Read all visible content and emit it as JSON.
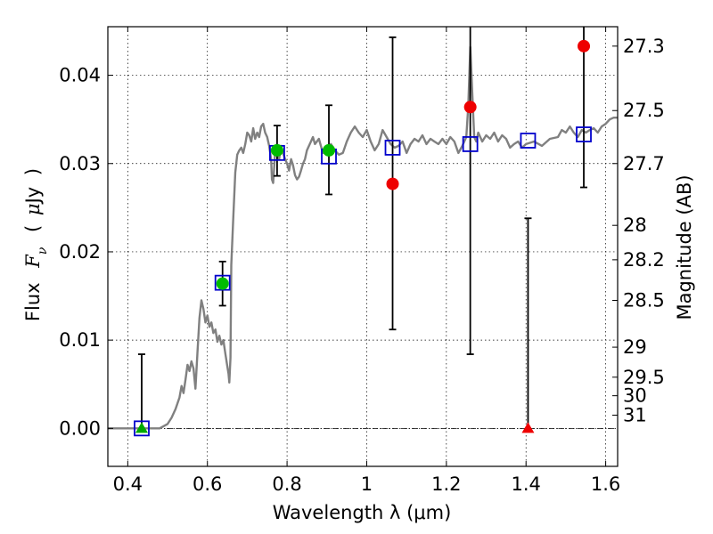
{
  "chart_data": {
    "type": "scatter",
    "xlabel": "Wavelength  λ (μm)",
    "ylabel": "Flux  F_ν  ( μJy )",
    "ylabel_parts": [
      "Flux",
      "F",
      "ν",
      "(",
      "μ",
      "Jy",
      ")"
    ],
    "y2label": "Magnitude (AB)",
    "xlim": [
      0.35,
      1.63
    ],
    "ylim": [
      -0.0043,
      0.0455
    ],
    "grid": true,
    "x_ticks": [
      {
        "value": 0.4,
        "label": "0.4"
      },
      {
        "value": 0.6,
        "label": "0.6"
      },
      {
        "value": 0.8,
        "label": "0.8"
      },
      {
        "value": 1.0,
        "label": "1"
      },
      {
        "value": 1.2,
        "label": "1.2"
      },
      {
        "value": 1.4,
        "label": "1.4"
      },
      {
        "value": 1.6,
        "label": "1.6"
      }
    ],
    "y_ticks": [
      {
        "value": 0.0,
        "label": "0.00"
      },
      {
        "value": 0.01,
        "label": "0.01"
      },
      {
        "value": 0.02,
        "label": "0.02"
      },
      {
        "value": 0.03,
        "label": "0.03"
      },
      {
        "value": 0.04,
        "label": "0.04"
      }
    ],
    "y2_ticks": [
      {
        "flux": 0.0433,
        "label": "27.3"
      },
      {
        "flux": 0.036,
        "label": "27.5"
      },
      {
        "flux": 0.03,
        "label": "27.7"
      },
      {
        "flux": 0.023,
        "label": "28"
      },
      {
        "flux": 0.0191,
        "label": "28.2"
      },
      {
        "flux": 0.0145,
        "label": "28.5"
      },
      {
        "flux": 0.0092,
        "label": "29"
      },
      {
        "flux": 0.0058,
        "label": "29.5"
      },
      {
        "flux": 0.0037,
        "label": "30"
      },
      {
        "flux": 0.0015,
        "label": "31"
      }
    ],
    "zero_line": {
      "y": 0.0
    },
    "series": [
      {
        "style": "sed_model",
        "color": "#808080",
        "points": [
          [
            0.35,
            0
          ],
          [
            0.45,
            0
          ],
          [
            0.48,
            0
          ],
          [
            0.5,
            0.0005
          ],
          [
            0.51,
            0.0012
          ],
          [
            0.52,
            0.0022
          ],
          [
            0.53,
            0.0035
          ],
          [
            0.535,
            0.0048
          ],
          [
            0.54,
            0.004
          ],
          [
            0.545,
            0.0055
          ],
          [
            0.55,
            0.0072
          ],
          [
            0.555,
            0.0065
          ],
          [
            0.56,
            0.0076
          ],
          [
            0.565,
            0.0068
          ],
          [
            0.57,
            0.0045
          ],
          [
            0.575,
            0.0085
          ],
          [
            0.58,
            0.0125
          ],
          [
            0.585,
            0.0145
          ],
          [
            0.59,
            0.0135
          ],
          [
            0.595,
            0.012
          ],
          [
            0.6,
            0.0128
          ],
          [
            0.605,
            0.0115
          ],
          [
            0.61,
            0.012
          ],
          [
            0.615,
            0.0108
          ],
          [
            0.62,
            0.0112
          ],
          [
            0.625,
            0.0098
          ],
          [
            0.63,
            0.0105
          ],
          [
            0.635,
            0.0095
          ],
          [
            0.64,
            0.01
          ],
          [
            0.645,
            0.0085
          ],
          [
            0.65,
            0.007
          ],
          [
            0.653,
            0.0062
          ],
          [
            0.655,
            0.0052
          ],
          [
            0.658,
            0.008
          ],
          [
            0.66,
            0.0185
          ],
          [
            0.665,
            0.024
          ],
          [
            0.67,
            0.029
          ],
          [
            0.675,
            0.031
          ],
          [
            0.68,
            0.0315
          ],
          [
            0.685,
            0.0318
          ],
          [
            0.69,
            0.0312
          ],
          [
            0.695,
            0.0322
          ],
          [
            0.7,
            0.0335
          ],
          [
            0.705,
            0.0332
          ],
          [
            0.71,
            0.0325
          ],
          [
            0.715,
            0.034
          ],
          [
            0.72,
            0.0328
          ],
          [
            0.725,
            0.0335
          ],
          [
            0.73,
            0.033
          ],
          [
            0.735,
            0.0342
          ],
          [
            0.74,
            0.0345
          ],
          [
            0.745,
            0.0335
          ],
          [
            0.75,
            0.033
          ],
          [
            0.755,
            0.032
          ],
          [
            0.76,
            0.0305
          ],
          [
            0.762,
            0.0282
          ],
          [
            0.765,
            0.0278
          ],
          [
            0.768,
            0.0298
          ],
          [
            0.77,
            0.0315
          ],
          [
            0.775,
            0.031
          ],
          [
            0.78,
            0.0305
          ],
          [
            0.785,
            0.032
          ],
          [
            0.79,
            0.0312
          ],
          [
            0.795,
            0.0305
          ],
          [
            0.8,
            0.03
          ],
          [
            0.805,
            0.0292
          ],
          [
            0.81,
            0.0305
          ],
          [
            0.815,
            0.0298
          ],
          [
            0.82,
            0.0287
          ],
          [
            0.825,
            0.0282
          ],
          [
            0.83,
            0.0285
          ],
          [
            0.835,
            0.0292
          ],
          [
            0.84,
            0.03
          ],
          [
            0.845,
            0.0305
          ],
          [
            0.85,
            0.0315
          ],
          [
            0.86,
            0.0325
          ],
          [
            0.865,
            0.033
          ],
          [
            0.87,
            0.0322
          ],
          [
            0.88,
            0.0328
          ],
          [
            0.89,
            0.0312
          ],
          [
            0.9,
            0.0318
          ],
          [
            0.91,
            0.0322
          ],
          [
            0.92,
            0.0315
          ],
          [
            0.93,
            0.031
          ],
          [
            0.94,
            0.0312
          ],
          [
            0.95,
            0.0325
          ],
          [
            0.96,
            0.0335
          ],
          [
            0.97,
            0.0342
          ],
          [
            0.98,
            0.0335
          ],
          [
            0.99,
            0.033
          ],
          [
            1.0,
            0.0338
          ],
          [
            1.01,
            0.0325
          ],
          [
            1.02,
            0.0315
          ],
          [
            1.03,
            0.0322
          ],
          [
            1.04,
            0.0338
          ],
          [
            1.05,
            0.033
          ],
          [
            1.06,
            0.0322
          ],
          [
            1.07,
            0.0318
          ],
          [
            1.08,
            0.032
          ],
          [
            1.09,
            0.0325
          ],
          [
            1.1,
            0.0312
          ],
          [
            1.11,
            0.0322
          ],
          [
            1.12,
            0.0328
          ],
          [
            1.13,
            0.0325
          ],
          [
            1.14,
            0.0332
          ],
          [
            1.15,
            0.0322
          ],
          [
            1.16,
            0.0328
          ],
          [
            1.17,
            0.0325
          ],
          [
            1.18,
            0.0322
          ],
          [
            1.19,
            0.0328
          ],
          [
            1.2,
            0.0322
          ],
          [
            1.21,
            0.033
          ],
          [
            1.22,
            0.0325
          ],
          [
            1.23,
            0.0312
          ],
          [
            1.24,
            0.032
          ],
          [
            1.25,
            0.033
          ],
          [
            1.255,
            0.0365
          ],
          [
            1.26,
            0.0432
          ],
          [
            1.265,
            0.038
          ],
          [
            1.27,
            0.033
          ],
          [
            1.275,
            0.0325
          ],
          [
            1.28,
            0.0335
          ],
          [
            1.29,
            0.0325
          ],
          [
            1.3,
            0.0332
          ],
          [
            1.31,
            0.0328
          ],
          [
            1.32,
            0.0335
          ],
          [
            1.33,
            0.0325
          ],
          [
            1.34,
            0.0332
          ],
          [
            1.35,
            0.0328
          ],
          [
            1.36,
            0.0318
          ],
          [
            1.37,
            0.0322
          ],
          [
            1.38,
            0.0325
          ],
          [
            1.39,
            0.0318
          ],
          [
            1.4,
            0.0322
          ],
          [
            1.42,
            0.0325
          ],
          [
            1.44,
            0.032
          ],
          [
            1.46,
            0.0328
          ],
          [
            1.48,
            0.033
          ],
          [
            1.49,
            0.0338
          ],
          [
            1.5,
            0.0335
          ],
          [
            1.51,
            0.0342
          ],
          [
            1.52,
            0.0335
          ],
          [
            1.53,
            0.033
          ],
          [
            1.54,
            0.0338
          ],
          [
            1.55,
            0.0335
          ],
          [
            1.56,
            0.0338
          ],
          [
            1.57,
            0.034
          ],
          [
            1.58,
            0.0335
          ],
          [
            1.59,
            0.0342
          ],
          [
            1.6,
            0.0345
          ],
          [
            1.61,
            0.035
          ],
          [
            1.62,
            0.0352
          ],
          [
            1.63,
            0.0352
          ]
        ]
      },
      {
        "style": "model_photometry",
        "marker": "open-square",
        "color": "#0000cc",
        "points": [
          [
            0.435,
            0.0
          ],
          [
            0.638,
            0.0165
          ],
          [
            0.775,
            0.0312
          ],
          [
            0.905,
            0.0308
          ],
          [
            1.065,
            0.0318
          ],
          [
            1.26,
            0.0322
          ],
          [
            1.405,
            0.0326
          ],
          [
            1.545,
            0.0333
          ]
        ]
      },
      {
        "style": "detection",
        "marker": "circle",
        "color": "#00bb00",
        "points": [
          [
            0.638,
            0.0164
          ],
          [
            0.775,
            0.0315
          ],
          [
            0.905,
            0.0315
          ]
        ]
      },
      {
        "style": "low_significance",
        "marker": "circle",
        "color": "#ee0000",
        "points": [
          [
            1.065,
            0.0277
          ],
          [
            1.26,
            0.0364
          ],
          [
            1.545,
            0.0433
          ]
        ]
      },
      {
        "style": "upper_limit",
        "marker": "triangle",
        "color": "#00aa00",
        "points": [
          [
            0.435,
            0.0
          ]
        ]
      },
      {
        "style": "upper_limit",
        "marker": "triangle",
        "color": "#ee0000",
        "points": [
          [
            1.405,
            0.0
          ]
        ]
      }
    ],
    "error_bars": [
      {
        "x": 0.435,
        "low": 0.0,
        "high": 0.0084
      },
      {
        "x": 0.638,
        "low": 0.0139,
        "high": 0.0189
      },
      {
        "x": 0.775,
        "low": 0.0286,
        "high": 0.0343
      },
      {
        "x": 0.905,
        "low": 0.0265,
        "high": 0.0366
      },
      {
        "x": 1.065,
        "low": 0.0112,
        "high": 0.0443
      },
      {
        "x": 1.26,
        "low": 0.0084,
        "high": 0.0455
      },
      {
        "x": 1.405,
        "low": 0.0,
        "high": 0.0238
      },
      {
        "x": 1.545,
        "low": 0.0273,
        "high": 0.0455
      }
    ]
  }
}
